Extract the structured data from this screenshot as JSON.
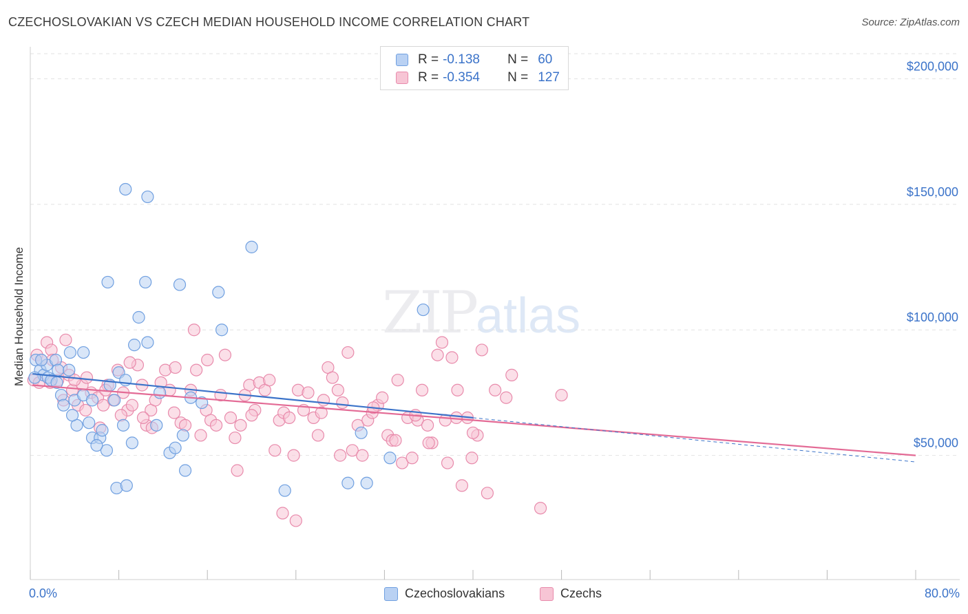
{
  "title": "CZECHOSLOVAKIAN VS CZECH MEDIAN HOUSEHOLD INCOME CORRELATION CHART",
  "source": "Source: ZipAtlas.com",
  "watermark": {
    "zip": "ZIP",
    "atlas": "atlas"
  },
  "legend": [
    {
      "r_label": "R =",
      "r_value": "-0.138",
      "n_label": "N =",
      "n_value": "60",
      "fill": "#b9d1f3",
      "stroke": "#6f9fe0"
    },
    {
      "r_label": "R =",
      "r_value": "-0.354",
      "n_label": "N =",
      "n_value": "127",
      "fill": "#f7c5d5",
      "stroke": "#e88aab"
    }
  ],
  "bottom_legend": [
    "Czechoslovakians",
    "Czechs"
  ],
  "chart_data": {
    "type": "scatter",
    "title": "CZECHOSLOVAKIAN VS CZECH MEDIAN HOUSEHOLD INCOME CORRELATION CHART",
    "xlabel": "",
    "ylabel": "Median Household Income",
    "xlim": [
      0,
      80
    ],
    "ylim": [
      0,
      210000
    ],
    "x_tick_labels": [
      "0.0%",
      "80.0%"
    ],
    "y_ticks": [
      50000,
      100000,
      150000,
      200000
    ],
    "y_tick_labels": [
      "$50,000",
      "$100,000",
      "$150,000",
      "$200,000"
    ],
    "grid": true,
    "series": [
      {
        "name": "Czechoslovakians",
        "color": "#6f9fe0",
        "fill": "#b9d1f3",
        "trend": {
          "x": [
            0.2,
            40
          ],
          "y": [
            82500,
            65000
          ]
        },
        "points": [
          [
            0.5,
            88000
          ],
          [
            0.9,
            84000
          ],
          [
            1.2,
            82000
          ],
          [
            1.6,
            81000
          ],
          [
            1.9,
            80000
          ],
          [
            0.4,
            81000
          ],
          [
            1.5,
            86000
          ],
          [
            2.3,
            88000
          ],
          [
            2.5,
            84000
          ],
          [
            2.8,
            74000
          ],
          [
            3.6,
            91000
          ],
          [
            3.0,
            70000
          ],
          [
            4.0,
            72000
          ],
          [
            4.2,
            62000
          ],
          [
            3.8,
            66000
          ],
          [
            5.3,
            63000
          ],
          [
            5.6,
            57000
          ],
          [
            4.8,
            74000
          ],
          [
            5.6,
            72000
          ],
          [
            6.3,
            57000
          ],
          [
            6.9,
            52000
          ],
          [
            6.5,
            60000
          ],
          [
            7.2,
            78000
          ],
          [
            7.6,
            72000
          ],
          [
            8.0,
            83000
          ],
          [
            8.6,
            80000
          ],
          [
            8.4,
            62000
          ],
          [
            7.8,
            37000
          ],
          [
            8.7,
            38000
          ],
          [
            9.2,
            55000
          ],
          [
            9.8,
            105000
          ],
          [
            9.4,
            94000
          ],
          [
            10.6,
            95000
          ],
          [
            11.4,
            62000
          ],
          [
            11.7,
            75000
          ],
          [
            12.6,
            51000
          ],
          [
            13.1,
            53000
          ],
          [
            13.8,
            58000
          ],
          [
            14.5,
            73000
          ],
          [
            15.5,
            71000
          ],
          [
            7.0,
            119000
          ],
          [
            10.4,
            119000
          ],
          [
            13.5,
            118000
          ],
          [
            17.0,
            115000
          ],
          [
            17.3,
            100000
          ],
          [
            8.6,
            156000
          ],
          [
            10.6,
            153000
          ],
          [
            20.0,
            133000
          ],
          [
            23.0,
            36000
          ],
          [
            28.7,
            39000
          ],
          [
            30.4,
            39000
          ],
          [
            29.9,
            59000
          ],
          [
            32.5,
            49000
          ],
          [
            35.5,
            108000
          ],
          [
            4.8,
            91000
          ],
          [
            3.5,
            84000
          ],
          [
            6.0,
            54000
          ],
          [
            2.4,
            79000
          ],
          [
            1.0,
            88000
          ],
          [
            14.0,
            44000
          ]
        ]
      },
      {
        "name": "Czechs",
        "color": "#e88aab",
        "fill": "#f7c5d5",
        "trend": {
          "x": [
            0.2,
            80
          ],
          "y": [
            78000,
            50000
          ]
        },
        "points": [
          [
            0.3,
            80000
          ],
          [
            0.6,
            90000
          ],
          [
            1.0,
            88000
          ],
          [
            1.5,
            95000
          ],
          [
            1.9,
            92000
          ],
          [
            2.5,
            80000
          ],
          [
            2.8,
            85000
          ],
          [
            3.2,
            96000
          ],
          [
            3.5,
            82000
          ],
          [
            3.8,
            76000
          ],
          [
            4.3,
            70000
          ],
          [
            4.7,
            78000
          ],
          [
            5.1,
            81000
          ],
          [
            5.5,
            75000
          ],
          [
            6.1,
            73000
          ],
          [
            6.6,
            70000
          ],
          [
            7.0,
            78000
          ],
          [
            7.5,
            72000
          ],
          [
            7.9,
            84000
          ],
          [
            8.4,
            75000
          ],
          [
            8.8,
            68000
          ],
          [
            9.2,
            70000
          ],
          [
            9.7,
            86000
          ],
          [
            10.1,
            78000
          ],
          [
            10.5,
            62000
          ],
          [
            10.9,
            68000
          ],
          [
            11.3,
            72000
          ],
          [
            11.8,
            79000
          ],
          [
            12.2,
            84000
          ],
          [
            12.6,
            76000
          ],
          [
            13.1,
            85000
          ],
          [
            13.6,
            63000
          ],
          [
            14.0,
            62000
          ],
          [
            14.5,
            76000
          ],
          [
            15.0,
            84000
          ],
          [
            15.4,
            58000
          ],
          [
            15.9,
            68000
          ],
          [
            16.3,
            64000
          ],
          [
            16.8,
            62000
          ],
          [
            17.2,
            74000
          ],
          [
            17.6,
            90000
          ],
          [
            18.1,
            65000
          ],
          [
            18.5,
            57000
          ],
          [
            19.0,
            62000
          ],
          [
            19.4,
            74000
          ],
          [
            19.8,
            78000
          ],
          [
            20.3,
            68000
          ],
          [
            20.7,
            79000
          ],
          [
            21.2,
            76000
          ],
          [
            21.6,
            80000
          ],
          [
            22.1,
            52000
          ],
          [
            22.5,
            64000
          ],
          [
            22.9,
            67000
          ],
          [
            23.4,
            65000
          ],
          [
            23.8,
            50000
          ],
          [
            24.2,
            76000
          ],
          [
            24.7,
            68000
          ],
          [
            25.1,
            75000
          ],
          [
            25.6,
            65000
          ],
          [
            26.0,
            58000
          ],
          [
            26.5,
            72000
          ],
          [
            26.9,
            85000
          ],
          [
            27.3,
            81000
          ],
          [
            27.8,
            76000
          ],
          [
            28.2,
            71000
          ],
          [
            28.7,
            91000
          ],
          [
            29.1,
            52000
          ],
          [
            29.6,
            62000
          ],
          [
            30.0,
            50000
          ],
          [
            30.5,
            64000
          ],
          [
            30.9,
            67000
          ],
          [
            31.4,
            70000
          ],
          [
            31.8,
            73000
          ],
          [
            32.3,
            58000
          ],
          [
            32.7,
            56000
          ],
          [
            33.2,
            80000
          ],
          [
            33.6,
            47000
          ],
          [
            34.1,
            65000
          ],
          [
            34.5,
            49000
          ],
          [
            35.0,
            64000
          ],
          [
            35.4,
            76000
          ],
          [
            35.9,
            62000
          ],
          [
            36.3,
            55000
          ],
          [
            36.8,
            90000
          ],
          [
            37.2,
            95000
          ],
          [
            37.7,
            47000
          ],
          [
            38.1,
            89000
          ],
          [
            38.6,
            76000
          ],
          [
            39.0,
            38000
          ],
          [
            39.5,
            65000
          ],
          [
            39.9,
            49000
          ],
          [
            40.4,
            58000
          ],
          [
            40.8,
            92000
          ],
          [
            41.3,
            35000
          ],
          [
            42.0,
            76000
          ],
          [
            43.0,
            73000
          ],
          [
            43.5,
            82000
          ],
          [
            46.1,
            29000
          ],
          [
            48.0,
            74000
          ],
          [
            1.8,
            79000
          ],
          [
            3.0,
            72000
          ],
          [
            5.0,
            68000
          ],
          [
            6.3,
            61000
          ],
          [
            9.0,
            87000
          ],
          [
            11.0,
            61000
          ],
          [
            13.0,
            67000
          ],
          [
            16.0,
            88000
          ],
          [
            18.7,
            44000
          ],
          [
            20.0,
            66000
          ],
          [
            22.8,
            27000
          ],
          [
            24.0,
            24000
          ],
          [
            26.3,
            67000
          ],
          [
            28.0,
            50000
          ],
          [
            31.0,
            69000
          ],
          [
            33.0,
            56000
          ],
          [
            34.8,
            66000
          ],
          [
            36.0,
            55000
          ],
          [
            37.5,
            64000
          ],
          [
            38.5,
            65000
          ],
          [
            40.0,
            59000
          ],
          [
            0.8,
            79000
          ],
          [
            2.0,
            88000
          ],
          [
            4.0,
            80000
          ],
          [
            6.8,
            76000
          ],
          [
            8.2,
            66000
          ],
          [
            10.2,
            65000
          ],
          [
            14.8,
            100000
          ]
        ]
      }
    ]
  }
}
